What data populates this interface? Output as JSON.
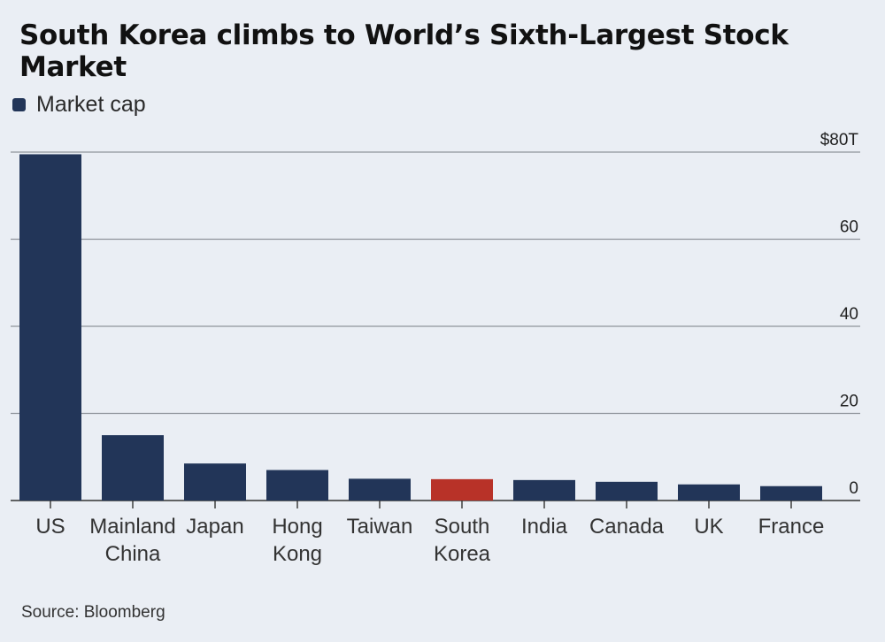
{
  "chart_data": {
    "type": "bar",
    "title": "South Korea climbs to World’s Sixth-Largest Stock Market",
    "legend": {
      "label": "Market cap",
      "position": "top-left"
    },
    "categories": [
      "US",
      "Mainland China",
      "Japan",
      "Hong Kong",
      "Taiwan",
      "South Korea",
      "India",
      "Canada",
      "UK",
      "France"
    ],
    "category_lines": [
      [
        "US"
      ],
      [
        "Mainland",
        "China"
      ],
      [
        "Japan"
      ],
      [
        "Hong",
        "Kong"
      ],
      [
        "Taiwan"
      ],
      [
        "South",
        "Korea"
      ],
      [
        "India"
      ],
      [
        "Canada"
      ],
      [
        "UK"
      ],
      [
        "France"
      ]
    ],
    "series": [
      {
        "name": "Market cap",
        "values": [
          79.5,
          15.0,
          8.5,
          7.0,
          5.0,
          4.9,
          4.7,
          4.3,
          3.7,
          3.3
        ]
      }
    ],
    "highlight": {
      "category": "South Korea",
      "color": "#b83228"
    },
    "bar_color": "#223558",
    "ylim": [
      0,
      80
    ],
    "yticks": [
      {
        "value": 80,
        "label": "$80T"
      },
      {
        "value": 60,
        "label": "60"
      },
      {
        "value": 40,
        "label": "40"
      },
      {
        "value": 20,
        "label": "20"
      },
      {
        "value": 0,
        "label": "0"
      }
    ],
    "y_axis_position": "right",
    "grid": true
  },
  "source": "Source: Bloomberg"
}
